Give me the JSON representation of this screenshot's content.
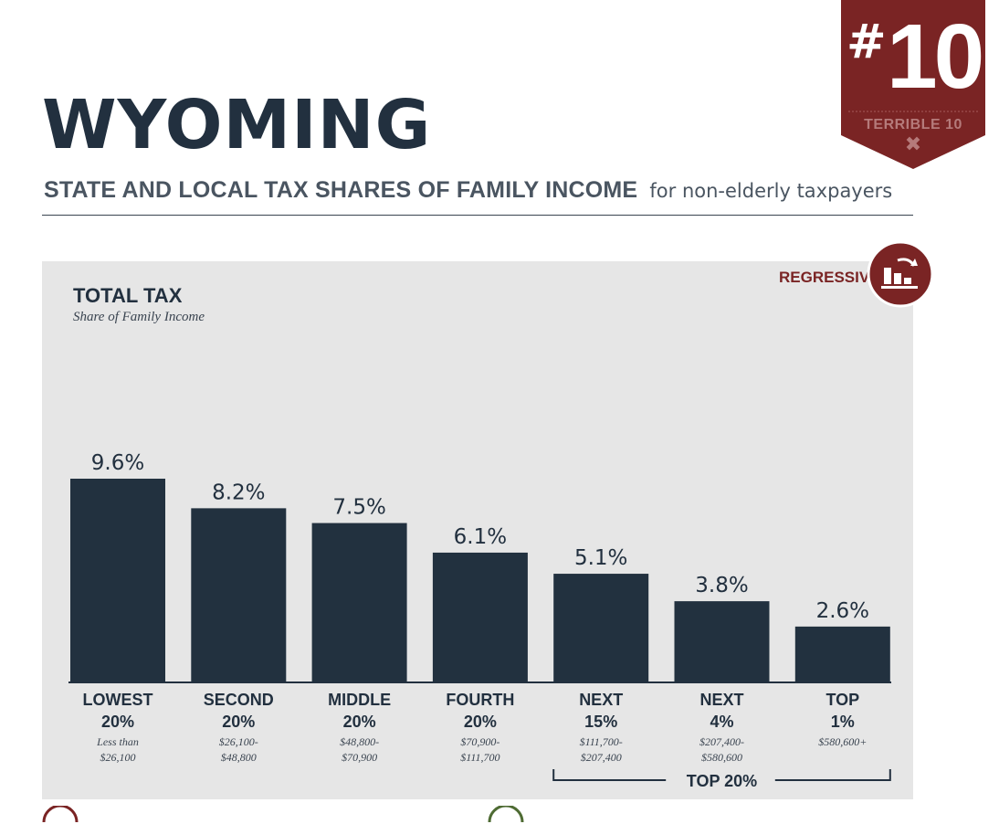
{
  "header": {
    "state": "WYOMING",
    "subtitle_bold": "STATE AND LOCAL TAX SHARES OF FAMILY INCOME",
    "subtitle_light": "for non-elderly taxpayers"
  },
  "badge": {
    "hash": "#",
    "rank": "10",
    "label": "TERRIBLE 10",
    "mark": "✖",
    "icon": "ribbon-badge"
  },
  "panel": {
    "regressive_label": "REGRESSIVE",
    "regressive_icon": "regressive-chart-icon"
  },
  "colors": {
    "bar": "#22313f",
    "badge": "#7a2424",
    "panel_bg": "#e6e6e6",
    "accent_text": "#7a2424"
  },
  "chart_data": {
    "type": "bar",
    "title": "TOTAL TAX",
    "subtitle": "Share of Family Income",
    "categories": [
      {
        "line1": "LOWEST",
        "line2": "20%",
        "range1": "Less than",
        "range2": "$26,100"
      },
      {
        "line1": "SECOND",
        "line2": "20%",
        "range1": "$26,100-",
        "range2": "$48,800"
      },
      {
        "line1": "MIDDLE",
        "line2": "20%",
        "range1": "$48,800-",
        "range2": "$70,900"
      },
      {
        "line1": "FOURTH",
        "line2": "20%",
        "range1": "$70,900-",
        "range2": "$111,700"
      },
      {
        "line1": "NEXT",
        "line2": "15%",
        "range1": "$111,700-",
        "range2": "$207,400"
      },
      {
        "line1": "NEXT",
        "line2": "4%",
        "range1": "$207,400-",
        "range2": "$580,600"
      },
      {
        "line1": "TOP",
        "line2": "1%",
        "range1": "$580,600+",
        "range2": ""
      }
    ],
    "values": [
      9.6,
      8.2,
      7.5,
      6.1,
      5.1,
      3.8,
      2.6
    ],
    "value_labels": [
      "9.6%",
      "8.2%",
      "7.5%",
      "6.1%",
      "5.1%",
      "3.8%",
      "2.6%"
    ],
    "ylim": [
      0,
      9.6
    ],
    "grid": false,
    "bracket_label": "TOP 20%"
  }
}
